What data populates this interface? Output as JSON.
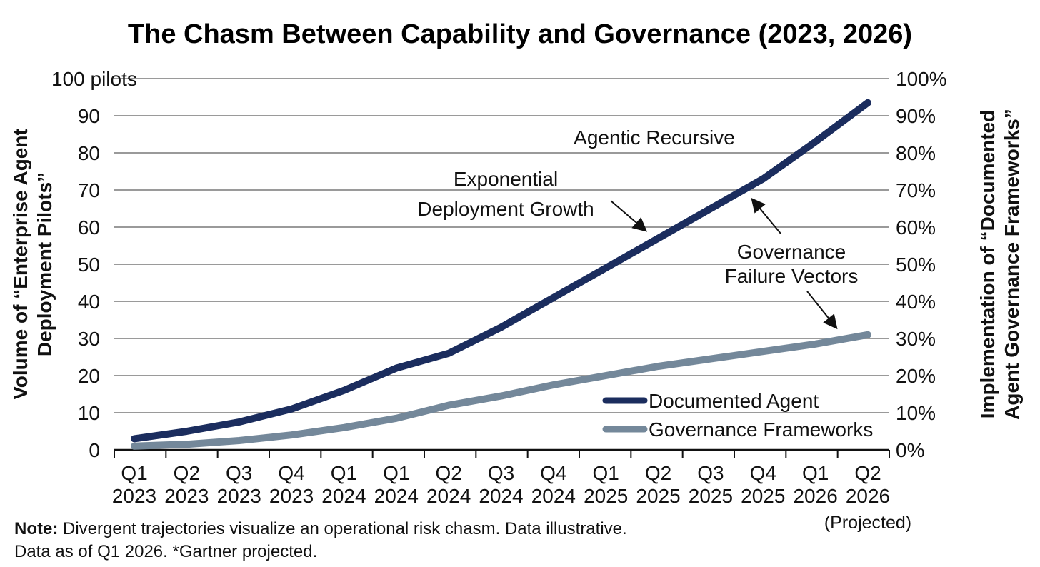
{
  "chart_data": {
    "type": "line",
    "title": "The Chasm Between Capability and Governance (2023, 2026)",
    "ylabel": [
      "Volume of “Enterprise Agent",
      "Deployment Pilots”"
    ],
    "y2label": [
      "Implementation of “Documented",
      "Agent Governance Frameworks”"
    ],
    "ylim": [
      0,
      100
    ],
    "y2lim": [
      0,
      100
    ],
    "yticks": [
      "0",
      "10",
      "20",
      "30",
      "40",
      "50",
      "60",
      "70",
      "80",
      "90",
      "100 pilots"
    ],
    "y2ticks": [
      "0%",
      "10%",
      "20%",
      "30%",
      "40%",
      "50%",
      "60%",
      "70%",
      "80%",
      "90%",
      "100%"
    ],
    "categories": [
      [
        "Q1",
        "2023"
      ],
      [
        "Q2",
        "2023"
      ],
      [
        "Q3",
        "2023"
      ],
      [
        "Q4",
        "2023"
      ],
      [
        "Q1",
        "2024"
      ],
      [
        "Q1",
        "2024"
      ],
      [
        "Q2",
        "2024"
      ],
      [
        "Q3",
        "2024"
      ],
      [
        "Q4",
        "2024"
      ],
      [
        "Q1",
        "2025"
      ],
      [
        "Q2",
        "2025"
      ],
      [
        "Q3",
        "2025"
      ],
      [
        "Q4",
        "2025"
      ],
      [
        "Q1",
        "2026"
      ],
      [
        "Q2",
        "2026"
      ]
    ],
    "projected_label": "(Projected)",
    "grid": true,
    "legend_position": "bottom-right",
    "series": [
      {
        "name": "Documented Agent",
        "color": "#1b2d5e",
        "values": [
          3,
          5,
          7.5,
          11,
          16,
          22,
          26,
          33,
          41,
          49,
          57,
          65,
          73,
          83,
          93.5
        ]
      },
      {
        "name": "Governance Frameworks",
        "color": "#74889a",
        "values": [
          1,
          1.5,
          2.5,
          4,
          6,
          8.5,
          12,
          14.5,
          17.5,
          20,
          22.5,
          24.5,
          26.5,
          28.5,
          31
        ]
      }
    ],
    "annotations": [
      {
        "lines": [
          "Agentic Recursive"
        ]
      },
      {
        "lines": [
          "Exponential",
          "Deployment Growth"
        ]
      },
      {
        "lines": [
          "Governance",
          "Failure Vectors"
        ]
      }
    ]
  },
  "note": {
    "label": "Note:",
    "line1": "Divergent trajectories visualize an operational risk chasm. Data illustrative.",
    "line2": "Data as of Q1 2026. *Gartner projected."
  }
}
